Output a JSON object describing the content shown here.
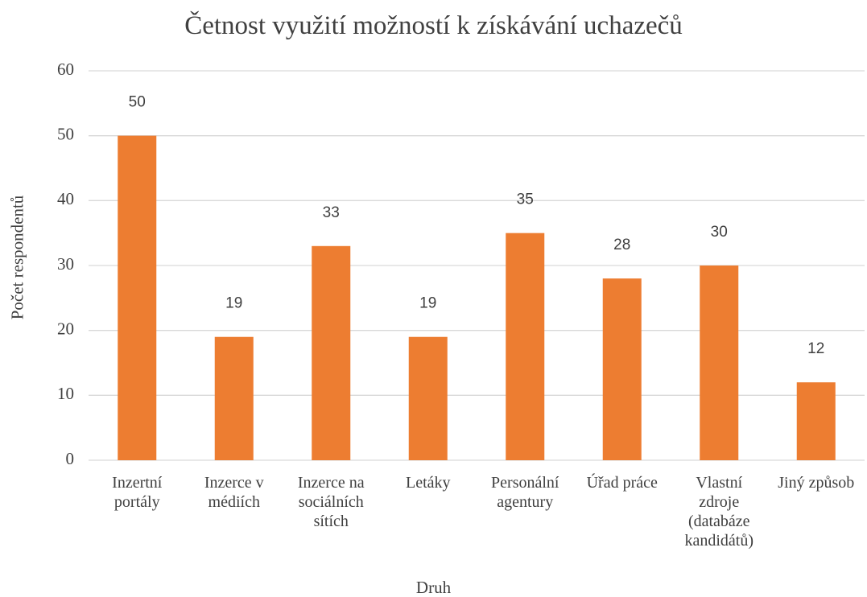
{
  "chart_data": {
    "type": "bar",
    "title": "Četnost využití možností k získávání uchazečů",
    "x_label": "Druh",
    "y_label": "Počet respondentů",
    "categories": [
      "Inzertní portály",
      "Inzerce v médiích",
      "Inzerce na sociálních sítích",
      "Letáky",
      "Personální agentury",
      "Úřad práce",
      "Vlastní zdroje (databáze kandidátů)",
      "Jiný způsob"
    ],
    "values": [
      50,
      19,
      33,
      19,
      35,
      28,
      30,
      12
    ],
    "color": "#ed7d31",
    "ylim": [
      0,
      60
    ],
    "yticks": [
      0,
      10,
      20,
      30,
      40,
      50,
      60
    ],
    "grid": true
  }
}
